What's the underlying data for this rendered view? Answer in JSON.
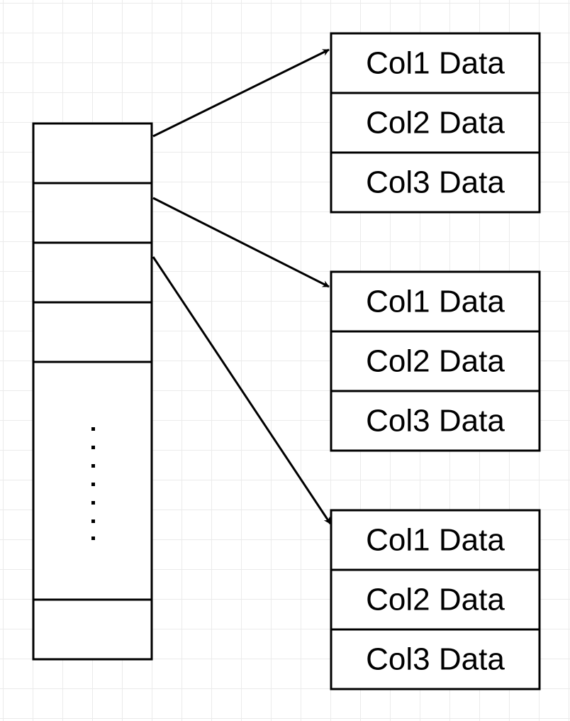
{
  "index_array": {
    "slot_count": 6,
    "ellipsis": "......."
  },
  "row_blocks": [
    {
      "cells": [
        "Col1 Data",
        "Col2 Data",
        "Col3 Data"
      ]
    },
    {
      "cells": [
        "Col1 Data",
        "Col2 Data",
        "Col3 Data"
      ]
    },
    {
      "cells": [
        "Col1 Data",
        "Col2 Data",
        "Col3 Data"
      ]
    }
  ],
  "colors": {
    "stroke": "#000000",
    "background": "#ffffff",
    "grid": "#ebebeb"
  }
}
